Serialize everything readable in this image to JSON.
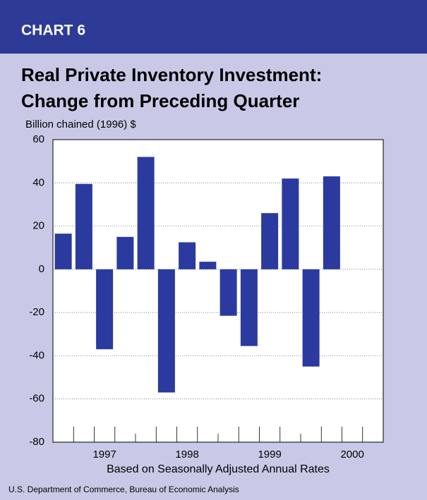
{
  "header": "CHART 6",
  "chart_data": {
    "type": "bar",
    "title": [
      "Real Private Inventory Investment:",
      "Change from Preceding Quarter"
    ],
    "ylabel": "Billion chained (1996) $",
    "xlabel": "Based on Seasonally Adjusted Annual Rates",
    "source": "U.S. Department of Commerce, Bureau of Economic Analysis",
    "categories": [
      null,
      null,
      "1997",
      null,
      null,
      null,
      "1998",
      null,
      null,
      null,
      "1999",
      null,
      null,
      null,
      "2000",
      null
    ],
    "values": [
      16.5,
      39.5,
      -37,
      15,
      52,
      -57,
      12.5,
      3.5,
      -21.5,
      -35.5,
      26,
      42,
      -45,
      43,
      null,
      null
    ],
    "color": "#2b3a9e",
    "ylim": [
      -80,
      60
    ],
    "yticks": [
      -80,
      -60,
      -40,
      -20,
      0,
      20,
      40,
      60
    ],
    "grid": true
  }
}
